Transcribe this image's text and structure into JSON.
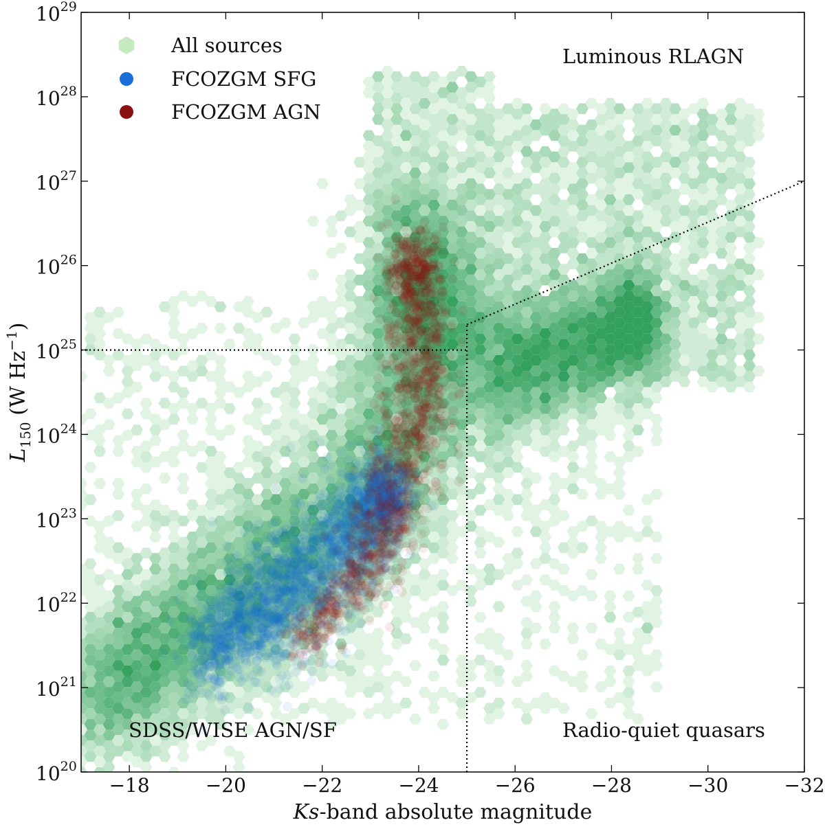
{
  "chart_data": {
    "type": "scatter",
    "xlabel_italic": "Ks",
    "xlabel_rest": "-band absolute magnitude",
    "ylabel_main": "L",
    "ylabel_sub": "150",
    "ylabel_unit_open": " (W Hz",
    "ylabel_unit_sup": "−1",
    "ylabel_unit_close": ")",
    "xlim": [
      -17,
      -32
    ],
    "ylim_log10": [
      20,
      29
    ],
    "yscale": "log",
    "xticks": [
      -18,
      -20,
      -22,
      -24,
      -26,
      -28,
      -30,
      -32
    ],
    "xtick_labels": [
      "−18",
      "−20",
      "−22",
      "−24",
      "−26",
      "−28",
      "−30",
      "−32"
    ],
    "yticks_exp": [
      20,
      21,
      22,
      23,
      24,
      25,
      26,
      27,
      28,
      29
    ],
    "ytick_base": "10",
    "ytick_exps": [
      "20",
      "21",
      "22",
      "23",
      "24",
      "25",
      "26",
      "27",
      "28",
      "29"
    ],
    "grid": false,
    "legend": {
      "position": "top-left",
      "entries": [
        {
          "label": "All sources",
          "color": "#c7e9c0",
          "marker": "hexagon"
        },
        {
          "label": "FCOZGM SFG",
          "color": "#1a6fd6",
          "marker": "circle"
        },
        {
          "label": "FCOZGM AGN",
          "color": "#8b1010",
          "marker": "circle"
        }
      ]
    },
    "annotations": [
      {
        "text": "Luminous RLAGN",
        "region": "top-right"
      },
      {
        "text": "SDSS/WISE AGN/SF",
        "region": "bottom-left"
      },
      {
        "text": "Radio-quiet quasars",
        "region": "bottom-right"
      }
    ],
    "divider_lines": [
      {
        "name": "horizontal",
        "points": [
          [
            -17,
            25.0
          ],
          [
            -25,
            25.0
          ]
        ]
      },
      {
        "name": "vertical",
        "points": [
          [
            -25,
            20
          ],
          [
            -25,
            25.3
          ]
        ]
      },
      {
        "name": "diagonal",
        "points": [
          [
            -25,
            25.3
          ],
          [
            -32,
            27.0
          ]
        ]
      }
    ],
    "series": [
      {
        "name": "All sources",
        "color": "#2ca25f",
        "density_ridge": [
          {
            "x": -17.2,
            "y": 20.8,
            "width": 0.5
          },
          {
            "x": -18.0,
            "y": 21.2,
            "width": 0.5
          },
          {
            "x": -19.0,
            "y": 21.6,
            "width": 0.55
          },
          {
            "x": -20.0,
            "y": 22.0,
            "width": 0.6
          },
          {
            "x": -21.0,
            "y": 22.4,
            "width": 0.6
          },
          {
            "x": -22.0,
            "y": 22.8,
            "width": 0.65
          },
          {
            "x": -23.0,
            "y": 23.3,
            "width": 0.7
          },
          {
            "x": -23.8,
            "y": 24.0,
            "width": 0.75
          },
          {
            "x": -24.2,
            "y": 24.8,
            "width": 0.7
          },
          {
            "x": -24.0,
            "y": 25.6,
            "width": 0.6
          },
          {
            "x": -23.9,
            "y": 26.3,
            "width": 0.5
          },
          {
            "x": -25.5,
            "y": 24.6,
            "width": 0.45
          },
          {
            "x": -26.5,
            "y": 24.9,
            "width": 0.45
          },
          {
            "x": -27.5,
            "y": 25.1,
            "width": 0.4
          },
          {
            "x": -28.5,
            "y": 25.3,
            "width": 0.35
          }
        ]
      },
      {
        "name": "FCOZGM SFG",
        "color": "#1a6fd6",
        "density_ridge": [
          {
            "x": -19.5,
            "y": 21.4,
            "width": 0.3
          },
          {
            "x": -20.5,
            "y": 21.8,
            "width": 0.4
          },
          {
            "x": -21.2,
            "y": 22.1,
            "width": 0.45
          },
          {
            "x": -22.0,
            "y": 22.5,
            "width": 0.4
          },
          {
            "x": -22.8,
            "y": 22.9,
            "width": 0.35
          },
          {
            "x": -23.3,
            "y": 23.3,
            "width": 0.25
          }
        ]
      },
      {
        "name": "FCOZGM AGN",
        "color": "#8b1010",
        "density_ridge": [
          {
            "x": -21.5,
            "y": 21.5,
            "width": 0.2
          },
          {
            "x": -22.8,
            "y": 22.3,
            "width": 0.3
          },
          {
            "x": -23.4,
            "y": 23.0,
            "width": 0.35
          },
          {
            "x": -23.8,
            "y": 23.8,
            "width": 0.35
          },
          {
            "x": -24.0,
            "y": 24.5,
            "width": 0.35
          },
          {
            "x": -24.0,
            "y": 25.3,
            "width": 0.3
          },
          {
            "x": -23.9,
            "y": 26.0,
            "width": 0.25
          }
        ]
      }
    ]
  }
}
